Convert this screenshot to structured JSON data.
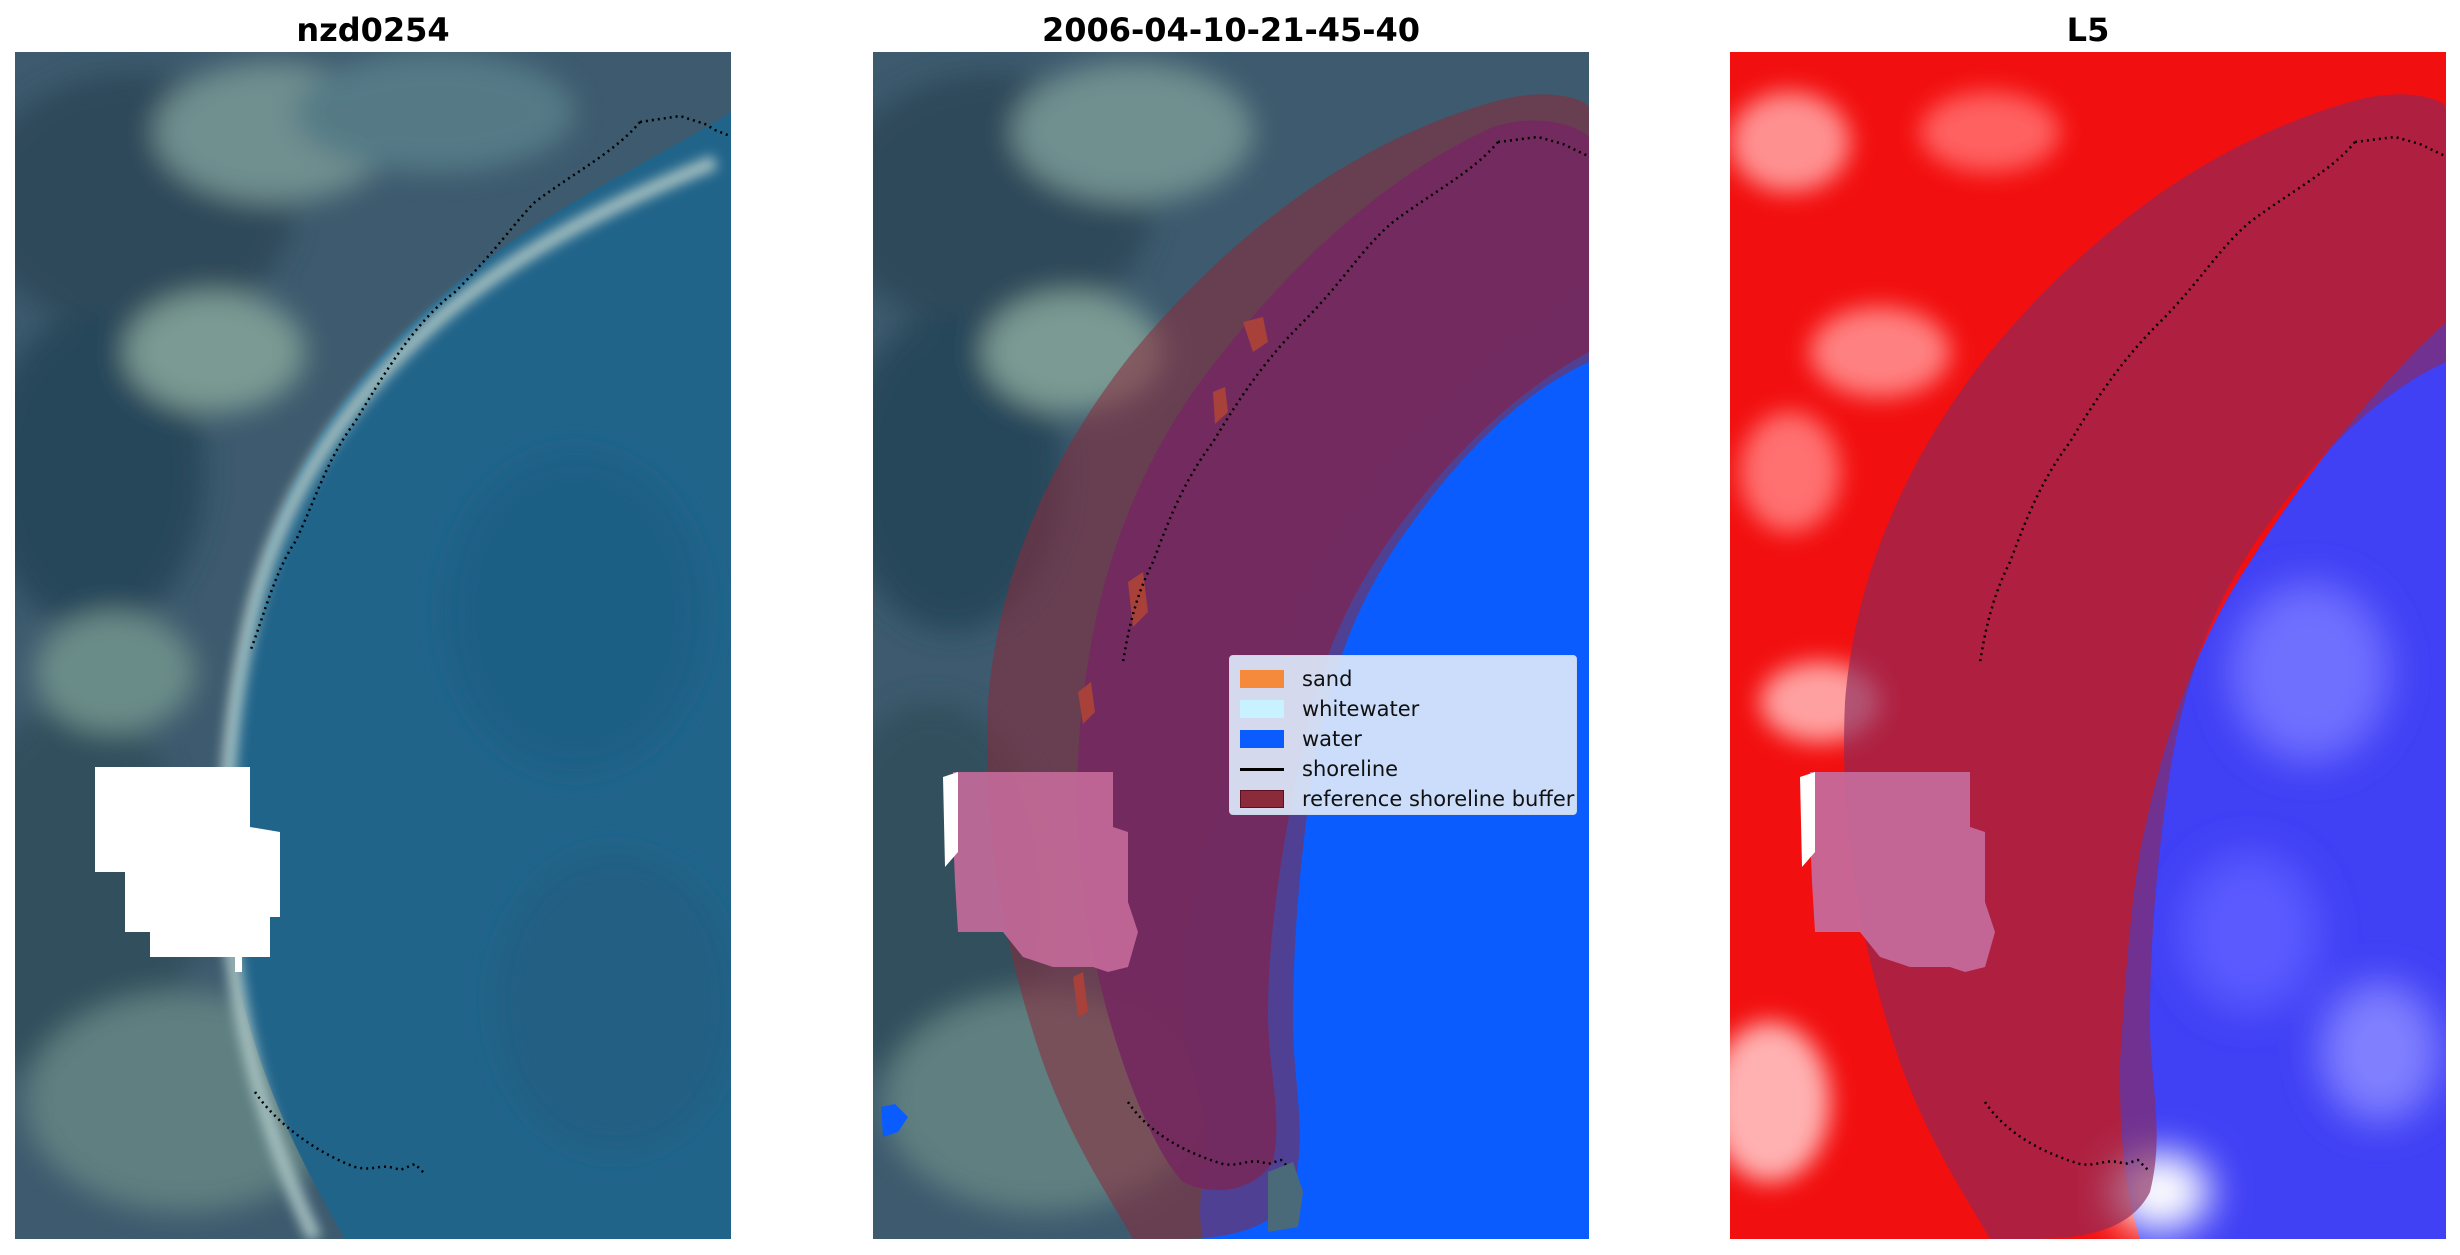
{
  "panels": [
    {
      "title": "nzd0254"
    },
    {
      "title": "2006-04-10-21-45-40"
    },
    {
      "title": "L5"
    }
  ],
  "colors": {
    "sand": "#f58a3c",
    "whitewater": "#c8f2ff",
    "water": "#0a5cff",
    "shoreline": "#000000",
    "buffer": "#8b2a3a"
  },
  "legend": {
    "items": [
      {
        "label": "sand",
        "kind": "patch",
        "color": "#f58a3c"
      },
      {
        "label": "whitewater",
        "kind": "patch",
        "color": "#c8f2ff"
      },
      {
        "label": "water",
        "kind": "patch",
        "color": "#0a5cff"
      },
      {
        "label": "shoreline",
        "kind": "line",
        "color": "#000000"
      },
      {
        "label": "reference shoreline buffer",
        "kind": "patch",
        "color": "#8b2a3a"
      }
    ]
  }
}
